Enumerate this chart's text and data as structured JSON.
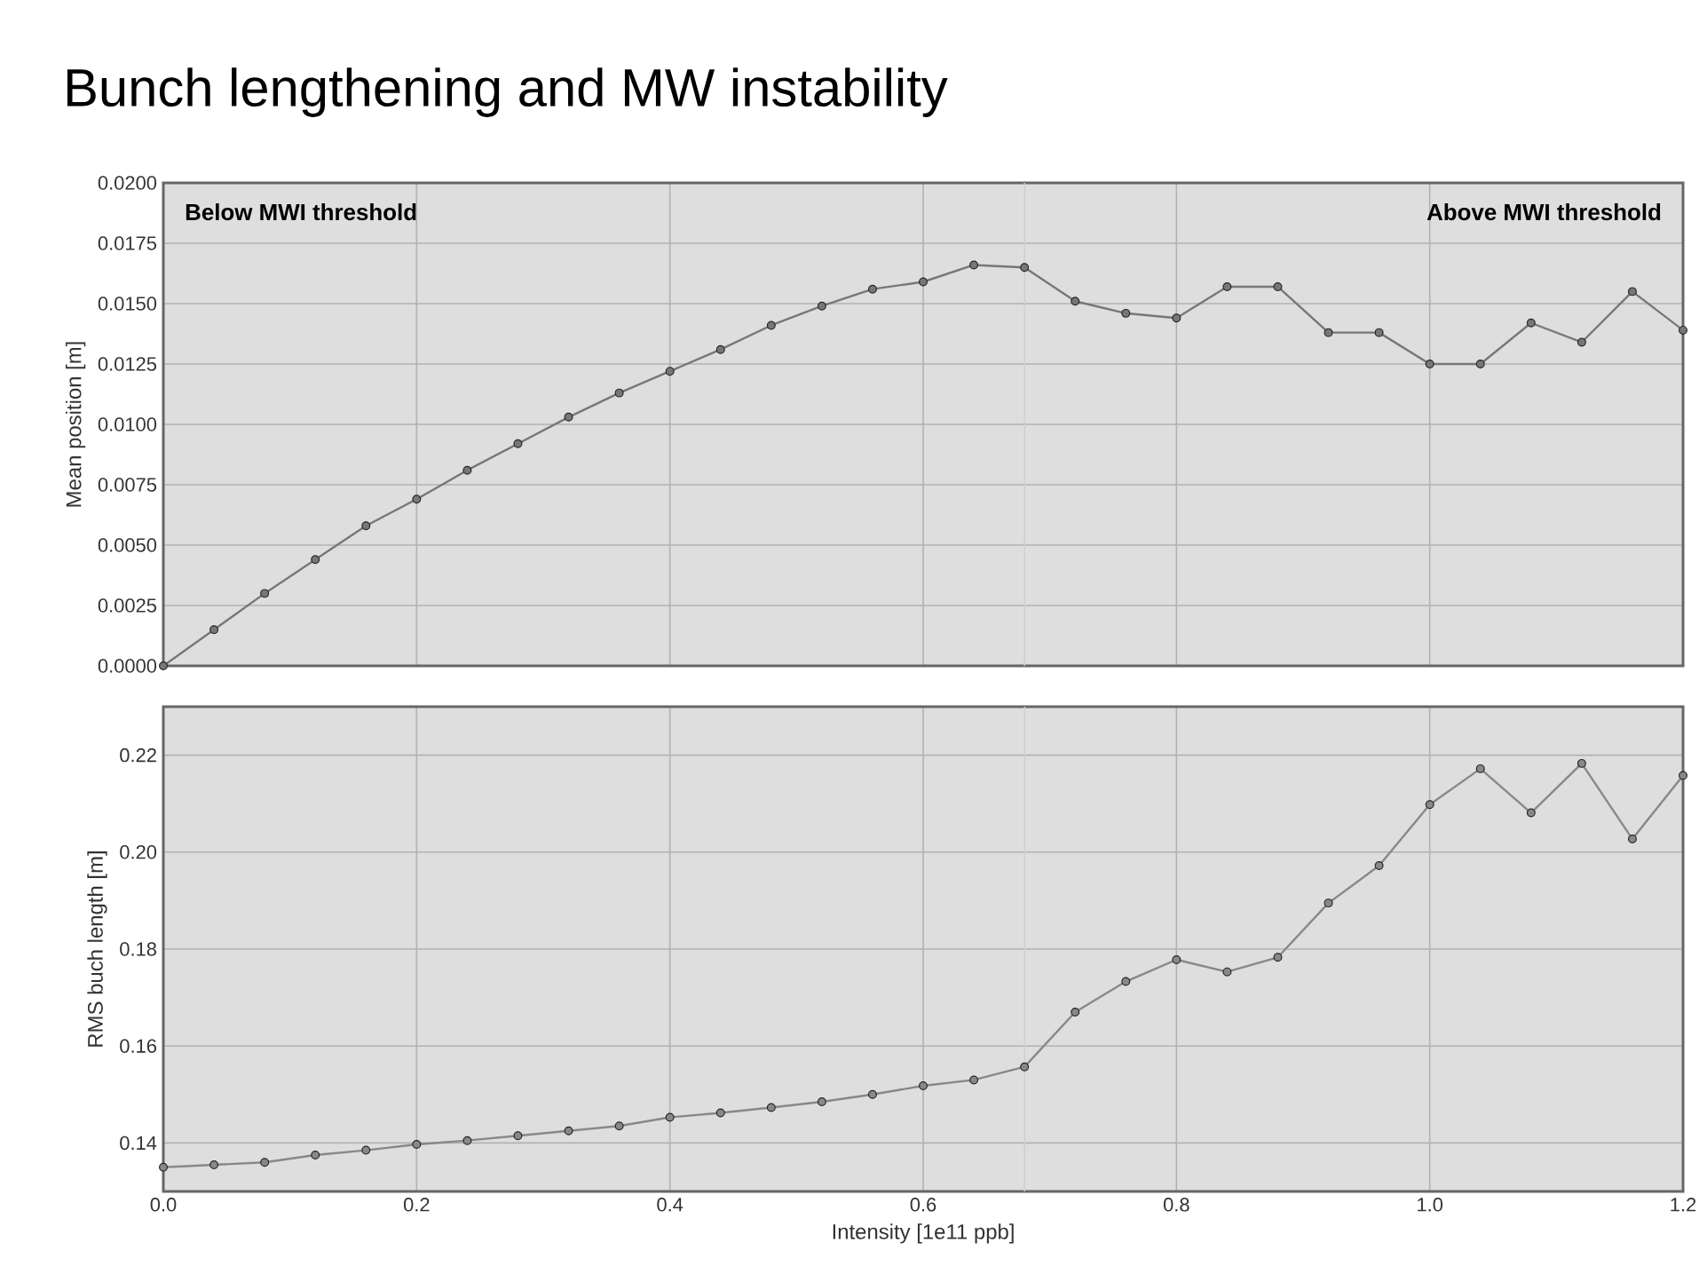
{
  "chart_data": [
    {
      "type": "line",
      "title": "Bunch lengthening and MW instability",
      "ylabel": "Mean position [m]",
      "annotations": [
        "**Below MWI threshold**",
        "**Above MWI threshold**"
      ],
      "x": [
        0,
        0.04,
        0.08,
        0.12,
        0.16,
        0.2,
        0.24,
        0.28,
        0.32,
        0.36,
        0.4,
        0.44,
        0.48,
        0.52,
        0.56,
        0.6,
        0.64,
        0.68,
        0.72,
        0.76,
        0.8,
        0.84,
        0.88,
        0.92,
        0.96,
        1.0,
        1.04,
        1.08,
        1.12,
        1.16,
        1.2
      ],
      "series": [
        {
          "color": "#777777",
          "values": [
            0,
            0.0015,
            0.003,
            0.0044,
            0.0058,
            0.0069,
            0.0081,
            0.0092,
            0.0103,
            0.0113,
            0.0122,
            0.0131,
            0.0141,
            0.0149,
            0.0156,
            0.0159,
            0.0166,
            0.0165,
            0.0151,
            0.0146,
            0.0144,
            0.0157,
            0.0157,
            0.0138,
            0.0138,
            0.0125,
            0.0125,
            0.0142,
            0.0134,
            0.0155,
            0.0139
          ]
        }
      ],
      "xlim": [
        0,
        1.2
      ],
      "xticks": [
        0,
        0.2,
        0.4,
        0.6,
        0.8,
        1.0,
        1.2
      ],
      "ylim": [
        0,
        0.02
      ],
      "yticks": [
        {
          "value": 0,
          "label": "0.0000"
        },
        {
          "value": 0.0025,
          "label": "0.0025"
        },
        {
          "value": 0.005,
          "label": "0.0050"
        },
        {
          "value": 0.0075,
          "label": "0.0075"
        },
        {
          "value": 0.01,
          "label": "0.0100"
        },
        {
          "value": 0.0125,
          "label": "0.0125"
        },
        {
          "value": 0.015,
          "label": "0.0150"
        },
        {
          "value": 0.0175,
          "label": "0.0175"
        },
        {
          "value": 0.02,
          "label": "0.0200"
        }
      ],
      "ref_lines": [
        {
          "axis": "x",
          "value": 0.68,
          "color": "#cfcfcf"
        }
      ],
      "tick_labels": "y",
      "grid": true,
      "marker": "circle",
      "line_style": "solid"
    },
    {
      "type": "line",
      "xlabel": "Intensity [1e11 ppb]",
      "ylabel": "RMS buch length [m]",
      "x": [
        0,
        0.04,
        0.08,
        0.12,
        0.16,
        0.2,
        0.24,
        0.28,
        0.32,
        0.36,
        0.4,
        0.44,
        0.48,
        0.52,
        0.56,
        0.6,
        0.64,
        0.68,
        0.72,
        0.76,
        0.8,
        0.84,
        0.88,
        0.92,
        0.96,
        1.0,
        1.04,
        1.08,
        1.12,
        1.16,
        1.2
      ],
      "series": [
        {
          "color": "#888888",
          "values": [
            0.135,
            0.1355,
            0.136,
            0.1375,
            0.1385,
            0.1397,
            0.1405,
            0.1415,
            0.1425,
            0.1435,
            0.1453,
            0.1462,
            0.1473,
            0.1485,
            0.15,
            0.1518,
            0.153,
            0.1557,
            0.167,
            0.1733,
            0.1778,
            0.1753,
            0.1783,
            0.1895,
            0.1972,
            0.2098,
            0.2172,
            0.2081,
            0.2183,
            0.2027,
            0.2158
          ]
        }
      ],
      "xlim": [
        0,
        1.2
      ],
      "xticks": [
        {
          "value": 0,
          "label": "0.0"
        },
        0.2,
        0.4,
        0.6,
        0.8,
        {
          "value": 1.0,
          "label": "1.0"
        },
        1.2
      ],
      "ylim": [
        0.13,
        0.23
      ],
      "yticks": [
        0.14,
        {
          "value": 0.16,
          "label": "0.16"
        },
        0.18,
        {
          "value": 0.2,
          "label": "0.20"
        },
        0.22
      ],
      "ref_lines": [
        {
          "axis": "x",
          "value": 0.68,
          "color": "#cfcfcf"
        }
      ],
      "grid": true,
      "marker": "circle",
      "line_style": "solid"
    }
  ]
}
